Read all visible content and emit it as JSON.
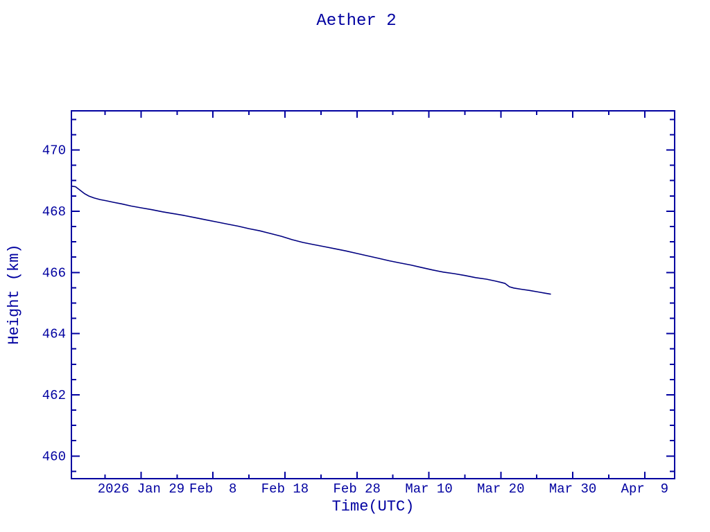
{
  "page": {
    "background": "#ffffff"
  },
  "chart_data": {
    "type": "line",
    "title": "Aether 2",
    "xlabel": "Time(UTC)",
    "ylabel": "Height (km)",
    "axis_color": "#0000a0",
    "text_color": "#0000a0",
    "line_color": "#000080",
    "grid": false,
    "legend": false,
    "x_unit": "days since 2026-01-19 00:00 UTC",
    "xlim": [
      0.32,
      84.16
    ],
    "ylim": [
      459.26,
      471.28
    ],
    "x_major_ticks": [
      {
        "value": 10,
        "label": "2026 Jan 29"
      },
      {
        "value": 20,
        "label": "Feb  8"
      },
      {
        "value": 30,
        "label": "Feb 18"
      },
      {
        "value": 40,
        "label": "Feb 28"
      },
      {
        "value": 50,
        "label": "Mar 10"
      },
      {
        "value": 60,
        "label": "Mar 20"
      },
      {
        "value": 70,
        "label": "Mar 30"
      },
      {
        "value": 80,
        "label": "Apr  9"
      }
    ],
    "x_minor_ticks": [
      5,
      15,
      25,
      35,
      45,
      55,
      65,
      75
    ],
    "y_major_ticks": [
      {
        "value": 460,
        "label": "460"
      },
      {
        "value": 462,
        "label": "462"
      },
      {
        "value": 464,
        "label": "464"
      },
      {
        "value": 466,
        "label": "466"
      },
      {
        "value": 468,
        "label": "468"
      },
      {
        "value": 470,
        "label": "470"
      }
    ],
    "y_minor_ticks": [
      459.5,
      460.5,
      461,
      461.5,
      462.5,
      463,
      463.5,
      464.5,
      465,
      465.5,
      466.5,
      467,
      467.5,
      468.5,
      469,
      469.5,
      470.5,
      471
    ],
    "series": [
      {
        "name": "height",
        "points": [
          [
            0.32,
            468.82
          ],
          [
            0.9,
            468.8
          ],
          [
            1.5,
            468.69
          ],
          [
            2.1,
            468.58
          ],
          [
            2.8,
            468.49
          ],
          [
            3.5,
            468.43
          ],
          [
            4.3,
            468.38
          ],
          [
            5.2,
            468.34
          ],
          [
            6.2,
            468.29
          ],
          [
            7.3,
            468.24
          ],
          [
            8.6,
            468.17
          ],
          [
            10.0,
            468.11
          ],
          [
            11.5,
            468.05
          ],
          [
            13.0,
            467.98
          ],
          [
            14.5,
            467.92
          ],
          [
            16.0,
            467.86
          ],
          [
            17.5,
            467.79
          ],
          [
            19.0,
            467.72
          ],
          [
            20.5,
            467.65
          ],
          [
            22.0,
            467.58
          ],
          [
            23.5,
            467.51
          ],
          [
            25.0,
            467.43
          ],
          [
            26.5,
            467.36
          ],
          [
            28.0,
            467.27
          ],
          [
            29.5,
            467.18
          ],
          [
            31.0,
            467.07
          ],
          [
            32.5,
            466.98
          ],
          [
            34.0,
            466.91
          ],
          [
            35.5,
            466.84
          ],
          [
            37.0,
            466.77
          ],
          [
            38.5,
            466.7
          ],
          [
            40.0,
            466.62
          ],
          [
            41.5,
            466.54
          ],
          [
            43.0,
            466.46
          ],
          [
            44.5,
            466.38
          ],
          [
            46.0,
            466.31
          ],
          [
            47.5,
            466.24
          ],
          [
            49.0,
            466.16
          ],
          [
            50.5,
            466.08
          ],
          [
            52.0,
            466.01
          ],
          [
            53.5,
            465.96
          ],
          [
            55.0,
            465.9
          ],
          [
            56.5,
            465.83
          ],
          [
            58.0,
            465.78
          ],
          [
            59.2,
            465.72
          ],
          [
            60.1,
            465.67
          ],
          [
            60.6,
            465.64
          ],
          [
            61.2,
            465.53
          ],
          [
            61.8,
            465.49
          ],
          [
            62.8,
            465.45
          ],
          [
            64.0,
            465.41
          ],
          [
            65.2,
            465.36
          ],
          [
            66.2,
            465.32
          ],
          [
            66.9,
            465.29
          ]
        ]
      }
    ]
  }
}
